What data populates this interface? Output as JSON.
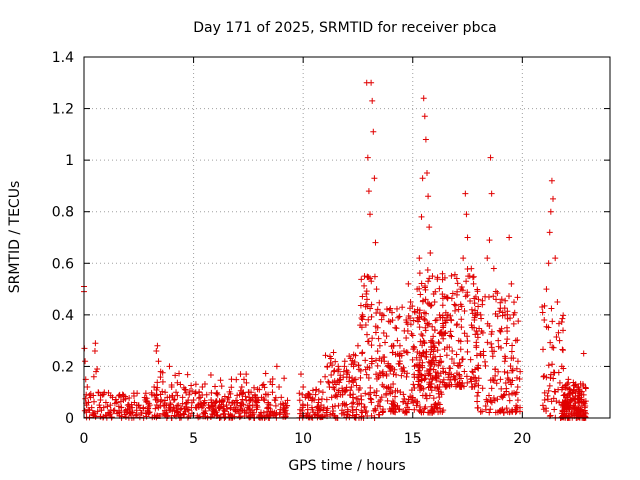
{
  "chart_data": {
    "type": "scatter",
    "title": "Day 171 of 2025, SRMTID for receiver pbca",
    "xlabel": "GPS time / hours",
    "ylabel": "SRMTID / TECUs",
    "xlim": [
      0,
      24
    ],
    "ylim": [
      0,
      1.4
    ],
    "xticks": [
      0,
      5,
      10,
      15,
      20
    ],
    "xtick_labels": [
      "0",
      "5",
      "10",
      "15",
      "20"
    ],
    "yticks": [
      0,
      0.2,
      0.4,
      0.6,
      0.8,
      1,
      1.2,
      1.4
    ],
    "ytick_labels": [
      "0",
      "0.2",
      "0.4",
      "0.6",
      "0.8",
      "1",
      "1.2",
      "1.4"
    ],
    "grid": true,
    "marker": "+",
    "color": "#e00000",
    "series": [
      {
        "name": "SRMTID",
        "points": [
          [
            0.0,
            0.51
          ],
          [
            0.0,
            0.49
          ],
          [
            0.02,
            0.27
          ],
          [
            0.05,
            0.22
          ],
          [
            0.08,
            0.15
          ],
          [
            0.1,
            0.09
          ],
          [
            0.12,
            0.05
          ],
          [
            0.15,
            0.12
          ],
          [
            0.2,
            0.06
          ],
          [
            0.25,
            0.03
          ],
          [
            0.3,
            0.08
          ],
          [
            0.35,
            0.04
          ],
          [
            0.4,
            0.02
          ],
          [
            0.45,
            0.16
          ],
          [
            0.5,
            0.26
          ],
          [
            0.52,
            0.29
          ],
          [
            0.55,
            0.18
          ],
          [
            0.6,
            0.19
          ],
          [
            0.65,
            0.1
          ],
          [
            0.7,
            0.05
          ],
          [
            0.75,
            0.07
          ],
          [
            0.8,
            0.03
          ],
          [
            0.85,
            0.09
          ],
          [
            0.9,
            0.04
          ],
          [
            1.0,
            0.06
          ],
          [
            1.1,
            0.02
          ],
          [
            1.2,
            0.05
          ],
          [
            1.3,
            0.08
          ],
          [
            1.4,
            0.03
          ],
          [
            1.5,
            0.06
          ],
          [
            1.6,
            0.02
          ],
          [
            1.7,
            0.04
          ],
          [
            1.8,
            0.07
          ],
          [
            1.9,
            0.03
          ],
          [
            2.0,
            0.05
          ],
          [
            2.1,
            0.02
          ],
          [
            2.2,
            0.04
          ],
          [
            2.3,
            0.06
          ],
          [
            2.4,
            0.03
          ],
          [
            2.5,
            0.05
          ],
          [
            2.6,
            0.02
          ],
          [
            2.7,
            0.04
          ],
          [
            2.8,
            0.07
          ],
          [
            2.9,
            0.03
          ],
          [
            3.0,
            0.05
          ],
          [
            3.1,
            0.09
          ],
          [
            3.2,
            0.12
          ],
          [
            3.3,
            0.26
          ],
          [
            3.35,
            0.28
          ],
          [
            3.4,
            0.22
          ],
          [
            3.5,
            0.18
          ],
          [
            3.6,
            0.14
          ],
          [
            3.7,
            0.1
          ],
          [
            3.8,
            0.08
          ],
          [
            3.9,
            0.2
          ],
          [
            4.0,
            0.12
          ],
          [
            4.1,
            0.07
          ],
          [
            4.2,
            0.1
          ],
          [
            4.3,
            0.05
          ],
          [
            4.4,
            0.13
          ],
          [
            4.5,
            0.08
          ],
          [
            4.6,
            0.11
          ],
          [
            4.7,
            0.06
          ],
          [
            4.8,
            0.09
          ],
          [
            4.9,
            0.04
          ],
          [
            5.0,
            0.07
          ],
          [
            5.1,
            0.1
          ],
          [
            5.2,
            0.05
          ],
          [
            5.3,
            0.08
          ],
          [
            5.4,
            0.12
          ],
          [
            5.5,
            0.06
          ],
          [
            5.6,
            0.09
          ],
          [
            5.7,
            0.04
          ],
          [
            5.8,
            0.07
          ],
          [
            5.9,
            0.03
          ],
          [
            6.0,
            0.06
          ],
          [
            6.1,
            0.09
          ],
          [
            6.2,
            0.04
          ],
          [
            6.3,
            0.07
          ],
          [
            6.4,
            0.03
          ],
          [
            6.5,
            0.05
          ],
          [
            6.6,
            0.08
          ],
          [
            6.7,
            0.04
          ],
          [
            6.8,
            0.06
          ],
          [
            6.9,
            0.03
          ],
          [
            7.0,
            0.06
          ],
          [
            7.1,
            0.09
          ],
          [
            7.2,
            0.12
          ],
          [
            7.3,
            0.15
          ],
          [
            7.4,
            0.17
          ],
          [
            7.5,
            0.1
          ],
          [
            7.6,
            0.07
          ],
          [
            7.7,
            0.05
          ],
          [
            7.8,
            0.09
          ],
          [
            7.9,
            0.06
          ],
          [
            8.0,
            0.11
          ],
          [
            8.1,
            0.08
          ],
          [
            8.2,
            0.13
          ],
          [
            8.3,
            0.09
          ],
          [
            8.4,
            0.06
          ],
          [
            8.5,
            0.14
          ],
          [
            8.6,
            0.1
          ],
          [
            8.7,
            0.07
          ],
          [
            8.8,
            0.2
          ],
          [
            8.9,
            0.12
          ],
          [
            9.0,
            0.08
          ],
          [
            9.1,
            0.05
          ],
          [
            9.2,
            0.03
          ],
          [
            9.9,
            0.17
          ],
          [
            10.0,
            0.12
          ],
          [
            10.1,
            0.08
          ],
          [
            10.2,
            0.05
          ],
          [
            10.3,
            0.09
          ],
          [
            10.4,
            0.04
          ],
          [
            10.5,
            0.07
          ],
          [
            10.6,
            0.11
          ],
          [
            10.7,
            0.06
          ],
          [
            10.8,
            0.14
          ],
          [
            10.9,
            0.1
          ],
          [
            11.0,
            0.16
          ],
          [
            11.1,
            0.2
          ],
          [
            11.2,
            0.12
          ],
          [
            11.3,
            0.08
          ],
          [
            11.4,
            0.18
          ],
          [
            11.5,
            0.13
          ],
          [
            11.6,
            0.2
          ],
          [
            11.7,
            0.15
          ],
          [
            11.8,
            0.09
          ],
          [
            11.9,
            0.22
          ],
          [
            12.0,
            0.17
          ],
          [
            12.1,
            0.24
          ],
          [
            12.2,
            0.12
          ],
          [
            12.3,
            0.2
          ],
          [
            12.4,
            0.15
          ],
          [
            12.5,
            0.28
          ],
          [
            12.6,
            0.36
          ],
          [
            12.7,
            0.4
          ],
          [
            12.8,
            0.55
          ],
          [
            12.9,
            1.3
          ],
          [
            12.95,
            1.01
          ],
          [
            13.0,
            0.88
          ],
          [
            13.05,
            0.79
          ],
          [
            13.1,
            1.3
          ],
          [
            13.15,
            1.23
          ],
          [
            13.2,
            1.11
          ],
          [
            13.25,
            0.93
          ],
          [
            13.3,
            0.68
          ],
          [
            13.35,
            0.5
          ],
          [
            13.4,
            0.35
          ],
          [
            13.5,
            0.28
          ],
          [
            13.6,
            0.4
          ],
          [
            13.7,
            0.22
          ],
          [
            13.8,
            0.17
          ],
          [
            13.9,
            0.12
          ],
          [
            14.0,
            0.2
          ],
          [
            14.1,
            0.28
          ],
          [
            14.2,
            0.35
          ],
          [
            14.3,
            0.3
          ],
          [
            14.4,
            0.24
          ],
          [
            14.5,
            0.19
          ],
          [
            14.6,
            0.26
          ],
          [
            14.7,
            0.38
          ],
          [
            14.8,
            0.52
          ],
          [
            14.9,
            0.45
          ],
          [
            15.0,
            0.32
          ],
          [
            15.1,
            0.41
          ],
          [
            15.2,
            0.5
          ],
          [
            15.3,
            0.62
          ],
          [
            15.4,
            0.78
          ],
          [
            15.45,
            0.93
          ],
          [
            15.5,
            1.24
          ],
          [
            15.55,
            1.17
          ],
          [
            15.6,
            1.08
          ],
          [
            15.65,
            0.95
          ],
          [
            15.7,
            0.86
          ],
          [
            15.75,
            0.74
          ],
          [
            15.8,
            0.64
          ],
          [
            15.9,
            0.55
          ],
          [
            16.0,
            0.45
          ],
          [
            16.1,
            0.38
          ],
          [
            16.2,
            0.29
          ],
          [
            16.3,
            0.22
          ],
          [
            16.4,
            0.18
          ],
          [
            16.5,
            0.33
          ],
          [
            16.6,
            0.4
          ],
          [
            16.7,
            0.32
          ],
          [
            16.8,
            0.26
          ],
          [
            16.9,
            0.44
          ],
          [
            17.0,
            0.36
          ],
          [
            17.1,
            0.3
          ],
          [
            17.2,
            0.5
          ],
          [
            17.3,
            0.62
          ],
          [
            17.4,
            0.87
          ],
          [
            17.45,
            0.79
          ],
          [
            17.5,
            0.7
          ],
          [
            17.6,
            0.55
          ],
          [
            17.7,
            0.42
          ],
          [
            17.8,
            0.35
          ],
          [
            17.9,
            0.28
          ],
          [
            18.0,
            0.46
          ],
          [
            18.1,
            0.4
          ],
          [
            18.2,
            0.33
          ],
          [
            18.3,
            0.47
          ],
          [
            18.4,
            0.62
          ],
          [
            18.5,
            0.69
          ],
          [
            18.55,
            1.01
          ],
          [
            18.6,
            0.87
          ],
          [
            18.7,
            0.58
          ],
          [
            18.8,
            0.46
          ],
          [
            18.9,
            0.3
          ],
          [
            19.0,
            0.15
          ],
          [
            19.1,
            0.08
          ],
          [
            19.2,
            0.22
          ],
          [
            19.3,
            0.35
          ],
          [
            19.4,
            0.7
          ],
          [
            19.5,
            0.52
          ],
          [
            19.6,
            0.4
          ],
          [
            19.7,
            0.3
          ],
          [
            19.8,
            0.22
          ],
          [
            19.9,
            0.18
          ],
          [
            21.0,
            0.38
          ],
          [
            21.1,
            0.5
          ],
          [
            21.2,
            0.6
          ],
          [
            21.25,
            0.72
          ],
          [
            21.3,
            0.8
          ],
          [
            21.35,
            0.92
          ],
          [
            21.4,
            0.85
          ],
          [
            21.5,
            0.62
          ],
          [
            21.6,
            0.45
          ],
          [
            21.7,
            0.3
          ],
          [
            21.8,
            0.2
          ],
          [
            21.9,
            0.12
          ],
          [
            22.0,
            0.08
          ],
          [
            22.1,
            0.15
          ],
          [
            22.2,
            0.05
          ],
          [
            22.3,
            0.1
          ],
          [
            22.4,
            0.04
          ],
          [
            22.5,
            0.12
          ],
          [
            22.6,
            0.06
          ],
          [
            22.7,
            0.09
          ],
          [
            22.8,
            0.25
          ],
          [
            22.85,
            0.04
          ]
        ],
        "bands": [
          {
            "x": [
              0.0,
              9.3
            ],
            "y": [
              0.0,
              0.1
            ],
            "n": 330
          },
          {
            "x": [
              3.2,
              9.2
            ],
            "y": [
              0.0,
              0.18
            ],
            "n": 120
          },
          {
            "x": [
              9.8,
              11.0
            ],
            "y": [
              0.0,
              0.12
            ],
            "n": 60
          },
          {
            "x": [
              11.0,
              12.6
            ],
            "y": [
              0.0,
              0.26
            ],
            "n": 110
          },
          {
            "x": [
              12.6,
              13.5
            ],
            "y": [
              0.0,
              0.55
            ],
            "n": 90
          },
          {
            "x": [
              13.5,
              16.4
            ],
            "y": [
              0.02,
              0.44
            ],
            "n": 260
          },
          {
            "x": [
              15.2,
              18.0
            ],
            "y": [
              0.12,
              0.58
            ],
            "n": 240
          },
          {
            "x": [
              17.8,
              19.9
            ],
            "y": [
              0.02,
              0.5
            ],
            "n": 160
          },
          {
            "x": [
              20.9,
              21.9
            ],
            "y": [
              0.0,
              0.45
            ],
            "n": 60
          },
          {
            "x": [
              21.8,
              22.9
            ],
            "y": [
              0.0,
              0.14
            ],
            "n": 170
          }
        ]
      }
    ]
  }
}
